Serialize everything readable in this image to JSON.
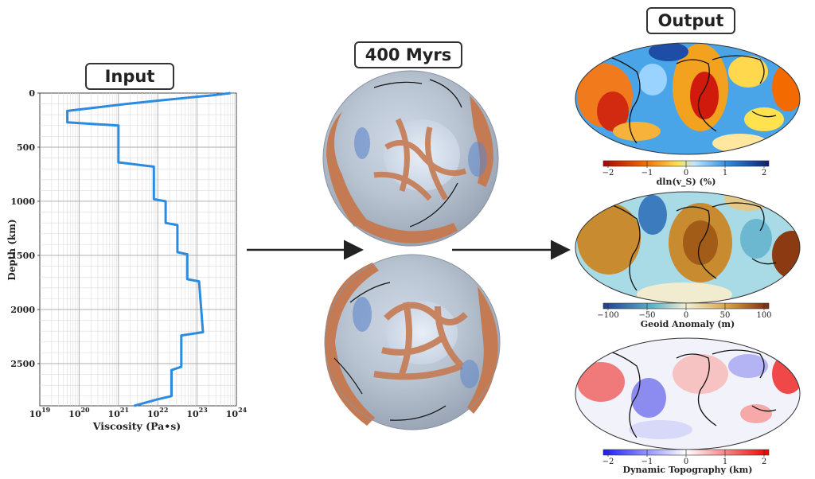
{
  "labels": {
    "input": "Input",
    "time": "400 Myrs",
    "output": "Output"
  },
  "chart_data": {
    "type": "line",
    "xlabel": "Viscosity (Pa•s)",
    "ylabel": "Depth (km)",
    "xscale": "log",
    "xlim": [
      1e+19,
      1e+24
    ],
    "ylim": [
      2890,
      0
    ],
    "x_ticks": [
      {
        "base": "10",
        "exp": "19"
      },
      {
        "base": "10",
        "exp": "20"
      },
      {
        "base": "10",
        "exp": "21"
      },
      {
        "base": "10",
        "exp": "22"
      },
      {
        "base": "10",
        "exp": "23"
      },
      {
        "base": "10",
        "exp": "24"
      }
    ],
    "y_ticks": [
      "0",
      "500",
      "1000",
      "1500",
      "2000",
      "2500"
    ],
    "y_tick_values": [
      0,
      500,
      1000,
      1500,
      2000,
      2500
    ],
    "grid": true,
    "color": "#2a8be0",
    "points": [
      [
        23.85,
        0
      ],
      [
        23.4,
        20
      ],
      [
        22.0,
        70
      ],
      [
        21.2,
        100
      ],
      [
        20.5,
        130
      ],
      [
        19.7,
        165
      ],
      [
        19.7,
        270
      ],
      [
        21.0,
        300
      ],
      [
        21.0,
        640
      ],
      [
        21.9,
        680
      ],
      [
        21.9,
        980
      ],
      [
        22.2,
        1000
      ],
      [
        22.2,
        1200
      ],
      [
        22.5,
        1220
      ],
      [
        22.5,
        1470
      ],
      [
        22.75,
        1490
      ],
      [
        22.75,
        1720
      ],
      [
        23.05,
        1740
      ],
      [
        23.15,
        2210
      ],
      [
        22.6,
        2240
      ],
      [
        22.6,
        2530
      ],
      [
        22.35,
        2560
      ],
      [
        22.35,
        2800
      ],
      [
        22.0,
        2830
      ],
      [
        21.4,
        2890
      ]
    ]
  },
  "maps": [
    {
      "cbar_label": "dln(v_S) (%)",
      "ticks": [
        "−2",
        "−1",
        "0",
        "1",
        "2"
      ]
    },
    {
      "cbar_label": "Geoid Anomaly (m)",
      "ticks": [
        "−100",
        "−50",
        "0",
        "50",
        "100"
      ]
    },
    {
      "cbar_label": "Dynamic Topography (km)",
      "ticks": [
        "−2",
        "−1",
        "0",
        "1",
        "2"
      ]
    }
  ],
  "colors": {
    "arrow": "#222222",
    "plume": "#c47a52"
  }
}
